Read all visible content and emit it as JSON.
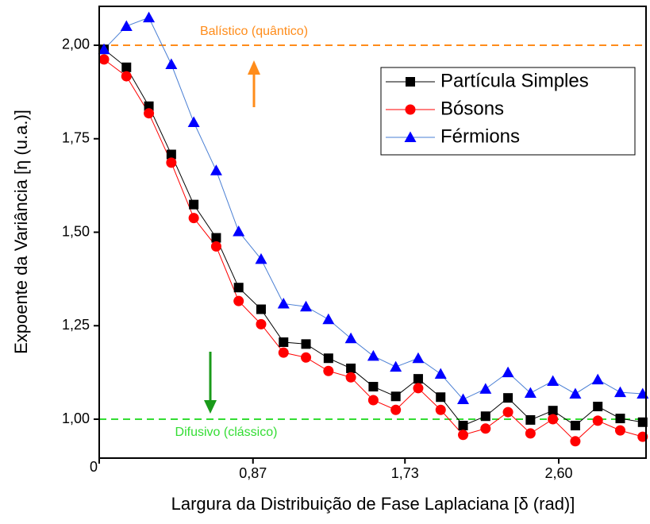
{
  "chart_data": {
    "type": "line",
    "xlabel": "Largura da Distribuição de Fase Laplaciana [δ (rad)]",
    "ylabel": "Expoente da Variância [η (u.a.)]",
    "x": [
      0.027,
      0.154,
      0.281,
      0.408,
      0.535,
      0.662,
      0.789,
      0.916,
      1.043,
      1.17,
      1.297,
      1.424,
      1.551,
      1.678,
      1.805,
      1.932,
      2.059,
      2.186,
      2.313,
      2.44,
      2.567,
      2.694,
      2.821,
      2.948,
      3.075
    ],
    "series": [
      {
        "name": "Partícula Simples",
        "color": "#000000",
        "marker": "square",
        "values": [
          1.989,
          1.941,
          1.837,
          1.708,
          1.574,
          1.485,
          1.352,
          1.294,
          1.206,
          1.201,
          1.163,
          1.136,
          1.087,
          1.061,
          1.108,
          1.059,
          0.983,
          1.008,
          1.057,
          0.998,
          1.023,
          0.983,
          1.034,
          1.002,
          0.992
        ]
      },
      {
        "name": "Bósons",
        "color": "#ff0000",
        "marker": "circle",
        "values": [
          1.962,
          1.917,
          1.818,
          1.686,
          1.538,
          1.462,
          1.316,
          1.254,
          1.178,
          1.165,
          1.129,
          1.112,
          1.051,
          1.025,
          1.083,
          1.025,
          0.958,
          0.975,
          1.019,
          0.962,
          1.0,
          0.941,
          0.996,
          0.97,
          0.953
        ]
      },
      {
        "name": "Férmions",
        "color": "#0000ff",
        "line_color": "#4a7fd4",
        "marker": "triangle",
        "values": [
          1.989,
          2.051,
          2.074,
          1.949,
          1.794,
          1.665,
          1.502,
          1.428,
          1.309,
          1.301,
          1.267,
          1.216,
          1.169,
          1.14,
          1.163,
          1.121,
          1.053,
          1.081,
          1.125,
          1.07,
          1.102,
          1.068,
          1.106,
          1.072,
          1.068
        ]
      }
    ],
    "xlim": [
      0,
      3.094
    ],
    "ylim": [
      0.896,
      2.104
    ],
    "xticks": [
      0,
      {
        "value": 0.87,
        "label": "0,87"
      },
      {
        "value": 1.73,
        "label": "1,73"
      },
      {
        "value": 2.6,
        "label": "2,60"
      }
    ],
    "yticks": [
      {
        "value": 1,
        "label": "1,00"
      },
      {
        "value": 1.25,
        "label": "1,25"
      },
      {
        "value": 1.5,
        "label": "1,50"
      },
      {
        "value": 1.75,
        "label": "1,75"
      },
      {
        "value": 2,
        "label": "2,00"
      }
    ],
    "reference_lines": [
      {
        "value": 2,
        "label": "Balístico (quântico)",
        "color": "#ff8c1a"
      },
      {
        "value": 1,
        "label": "Difusivo (clássico)",
        "color": "#33dd33"
      }
    ],
    "legend": "upper right"
  }
}
